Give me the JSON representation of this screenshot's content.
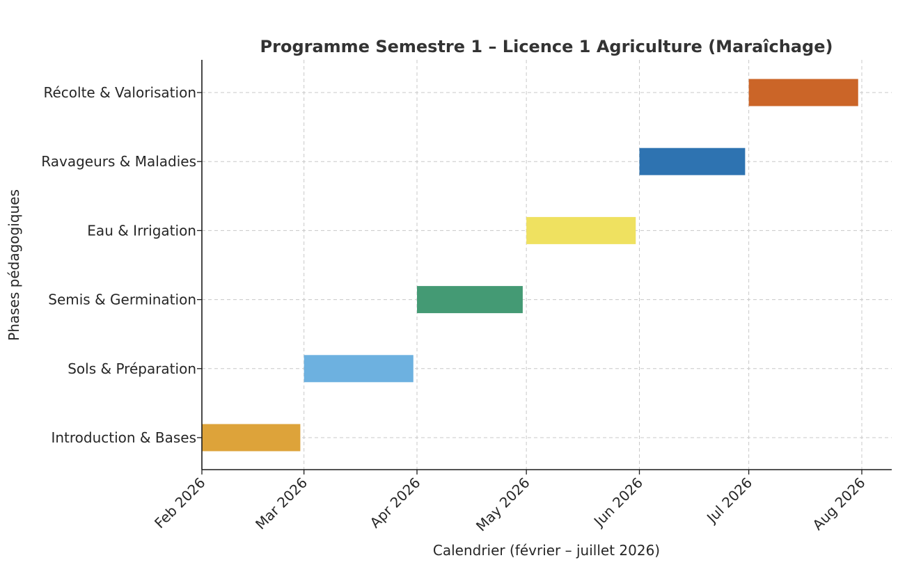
{
  "chart_data": {
    "type": "gantt",
    "title": "Programme Semestre 1 – Licence 1 Agriculture (Maraîchage)",
    "xlabel": "Calendrier (février – juillet 2026)",
    "ylabel": "Phases pédagogiques",
    "x_ticks": [
      "Feb 2026",
      "Mar 2026",
      "Apr 2026",
      "May 2026",
      "Jun 2026",
      "Jul 2026",
      "Aug 2026"
    ],
    "xlim": [
      "2026-02-01",
      "2026-08-01"
    ],
    "grid": true,
    "tasks": [
      {
        "label": "Introduction & Bases",
        "start": "2026-02-01",
        "end": "2026-02-28",
        "color": "#DDA33A"
      },
      {
        "label": "Sols & Préparation",
        "start": "2026-03-01",
        "end": "2026-03-31",
        "color": "#6DB1E0"
      },
      {
        "label": "Semis & Germination",
        "start": "2026-04-01",
        "end": "2026-04-30",
        "color": "#449A74"
      },
      {
        "label": "Eau & Irrigation",
        "start": "2026-05-01",
        "end": "2026-05-31",
        "color": "#EFE160"
      },
      {
        "label": "Ravageurs & Maladies",
        "start": "2026-06-01",
        "end": "2026-06-30",
        "color": "#2E73B1"
      },
      {
        "label": "Récolte & Valorisation",
        "start": "2026-07-01",
        "end": "2026-07-31",
        "color": "#CB6528"
      }
    ]
  }
}
